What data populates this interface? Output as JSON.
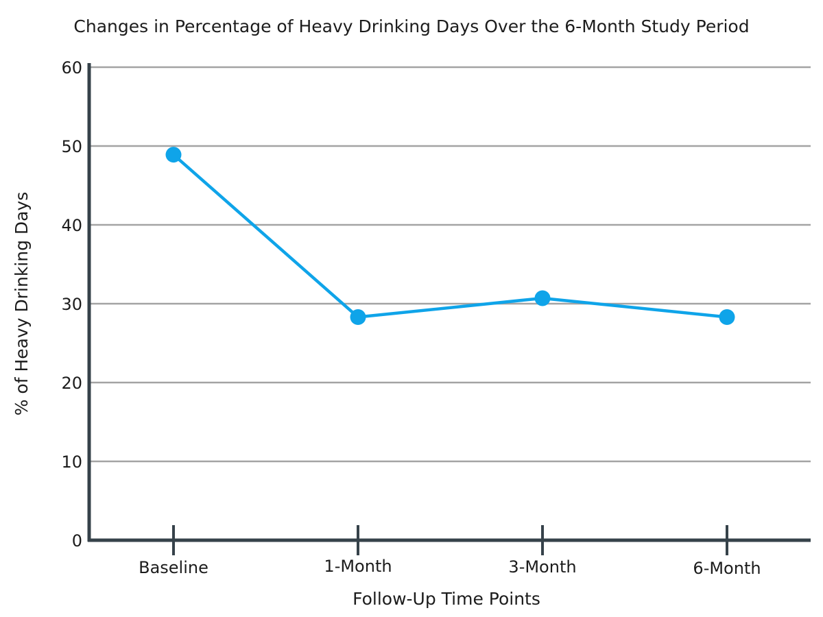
{
  "chart_data": {
    "type": "line",
    "title": "Changes in Percentage of Heavy Drinking Days Over the 6-Month Study Period",
    "xlabel": "Follow-Up Time Points",
    "ylabel": "% of Heavy Drinking Days",
    "categories": [
      "Baseline",
      "1-Month",
      "3-Month",
      "6-Month"
    ],
    "series": [
      {
        "values": [
          48.9,
          28.3,
          30.7,
          28.3
        ]
      }
    ],
    "ylim": [
      0,
      60
    ],
    "yticks": [
      0,
      10,
      20,
      30,
      40,
      50,
      60
    ],
    "grid": true,
    "line_color": "#0fa4e9",
    "grid_color": "#a3a3a3",
    "axis_color": "#36424a"
  }
}
